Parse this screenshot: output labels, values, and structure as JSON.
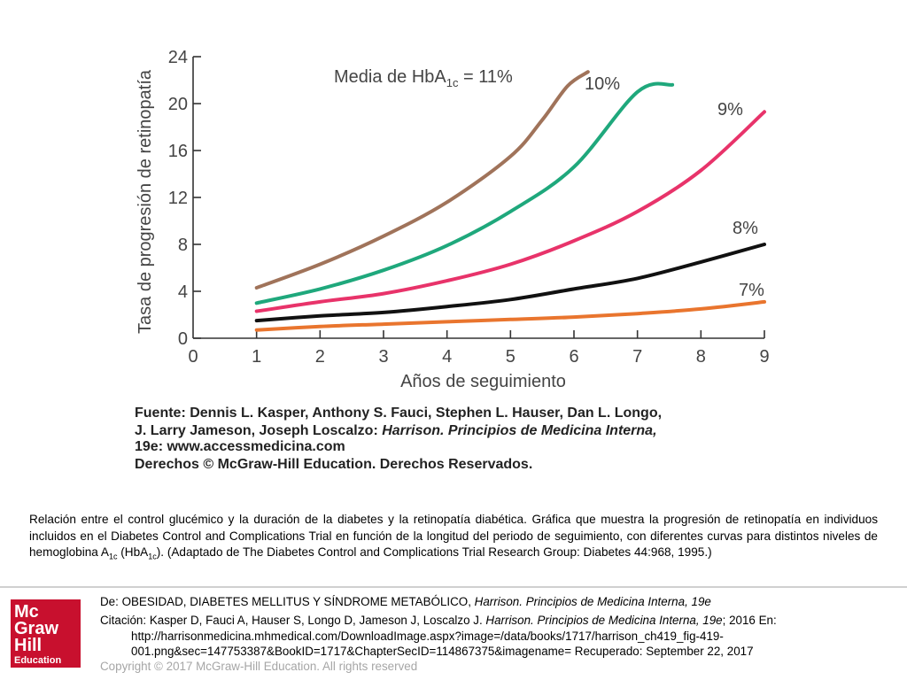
{
  "chart_data": {
    "type": "line",
    "x": [
      1,
      2,
      3,
      4,
      5,
      6,
      7,
      8,
      9
    ],
    "xlim": [
      0,
      9
    ],
    "ylim": [
      0,
      24
    ],
    "xticks": [
      0,
      1,
      2,
      3,
      4,
      5,
      6,
      7,
      8,
      9
    ],
    "yticks": [
      0,
      4,
      8,
      12,
      16,
      20,
      24
    ],
    "xlabel": "Años de seguimiento",
    "ylabel": "Tasa de progresión de retinopatía",
    "grid": false,
    "series": [
      {
        "name": "Media de HbA1c = 11%",
        "color": "#a0735a",
        "points": [
          [
            1,
            4.3
          ],
          [
            2,
            6.3
          ],
          [
            3,
            8.7
          ],
          [
            4,
            11.6
          ],
          [
            5,
            15.5
          ],
          [
            5.5,
            18.6
          ],
          [
            5.9,
            21.5
          ],
          [
            6.22,
            22.7
          ]
        ]
      },
      {
        "name": "10%",
        "color": "#1fa87c",
        "points": [
          [
            1,
            3.0
          ],
          [
            2,
            4.2
          ],
          [
            3,
            5.8
          ],
          [
            4,
            7.9
          ],
          [
            5,
            10.8
          ],
          [
            6,
            14.6
          ],
          [
            7,
            21.0
          ],
          [
            7.55,
            21.6
          ]
        ]
      },
      {
        "name": "9%",
        "color": "#e8336a",
        "points": [
          [
            1,
            2.3
          ],
          [
            2,
            3.1
          ],
          [
            3,
            3.8
          ],
          [
            4,
            4.9
          ],
          [
            5,
            6.3
          ],
          [
            6,
            8.3
          ],
          [
            7,
            10.8
          ],
          [
            8,
            14.3
          ],
          [
            9,
            19.3
          ]
        ]
      },
      {
        "name": "8%",
        "color": "#111111",
        "points": [
          [
            1,
            1.5
          ],
          [
            2,
            1.9
          ],
          [
            3,
            2.2
          ],
          [
            4,
            2.7
          ],
          [
            5,
            3.3
          ],
          [
            6,
            4.2
          ],
          [
            7,
            5.1
          ],
          [
            8,
            6.5
          ],
          [
            9,
            8.0
          ]
        ]
      },
      {
        "name": "7%",
        "color": "#e9752e",
        "points": [
          [
            1,
            0.7
          ],
          [
            2,
            1.0
          ],
          [
            3,
            1.2
          ],
          [
            4,
            1.4
          ],
          [
            5,
            1.6
          ],
          [
            6,
            1.8
          ],
          [
            7,
            2.1
          ],
          [
            8,
            2.5
          ],
          [
            9,
            3.1
          ]
        ]
      }
    ],
    "annotations": {
      "label_11_prefix": "Media de HbA",
      "label_11_sub": "1c",
      "label_11_suffix": " = 11%",
      "label_10": "10%",
      "label_9": "9%",
      "label_8": "8%",
      "label_7": "7%"
    },
    "source_note": [
      "Fuente: Dennis L. Kasper, Anthony S. Fauci, Stephen L. Hauser, Dan L. Longo,",
      "J. Larry Jameson, Joseph Loscalzo: ",
      "Harrison. Principios de Medicina Interna,",
      "19e: www.accessmedicina.com",
      "Derechos © McGraw-Hill Education. Derechos Reservados."
    ]
  },
  "caption": {
    "text_a": "Relación entre el control glucémico y la duración de la diabetes y la retinopatía diabética. Gráfica que muestra la progresión de retinopatía en individuos incluidos en el Diabetes Control and Complications Trial en función de la longitud del periodo de seguimiento, con diferentes curvas para distintos niveles de hemoglobina A",
    "sub_a": "1c",
    "text_b": " (HbA",
    "sub_b": "1c",
    "text_c": "). (Adaptado de The Diabetes Control and Complications Trial Research Group: Diabetes 44:968, 1995.)"
  },
  "logo": {
    "line1": "Mc",
    "line2": "Graw",
    "line3": "Hill",
    "line4": "Education"
  },
  "footer": {
    "source_prefix": "De: ",
    "source_title": "OBESIDAD, DIABETES MELLITUS Y SÍNDROME METABÓLICO, ",
    "source_book": "Harrison. Principios de Medicina Interna, 19e",
    "citation_prefix": "Citación: Kasper D, Fauci A, Hauser S, Longo D, Jameson J, Loscalzo J",
    "citation_sep": ". ",
    "citation_book": "Harrison. Principios de Medicina Interna, 19e",
    "citation_rest": "; 2016 En: http://harrisonmedicina.mhmedical.com/DownloadImage.aspx?image=/data/books/1717/harrison_ch419_fig-419-001.png&sec=147753387&BookID=1717&ChapterSecID=114867375&imagename= Recuperado: September 22, 2017",
    "copyright": "Copyright © 2017 McGraw-Hill Education. All rights reserved"
  }
}
